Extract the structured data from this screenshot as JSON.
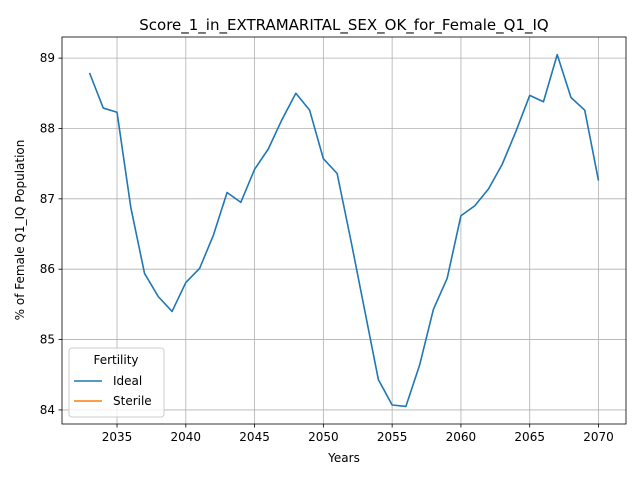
{
  "chart_data": {
    "type": "line",
    "title": "Score_1_in_EXTRAMARITAL_SEX_OK_for_Female_Q1_IQ",
    "xlabel": "Years",
    "ylabel": "% of Female Q1_IQ Population",
    "xlim": [
      2031,
      2072
    ],
    "ylim": [
      83.8,
      89.3
    ],
    "xticks": [
      "2035",
      "2040",
      "2045",
      "2050",
      "2055",
      "2060",
      "2065",
      "2070"
    ],
    "yticks": [
      "84",
      "85",
      "86",
      "87",
      "88",
      "89"
    ],
    "grid": true,
    "legend": {
      "title": "Fertility",
      "placement": "lower-left",
      "entries": [
        "Ideal",
        "Sterile"
      ]
    },
    "series": [
      {
        "name": "Ideal",
        "color": "#1f77b4",
        "x": [
          2033,
          2034,
          2035,
          2036,
          2037,
          2038,
          2039,
          2040,
          2041,
          2042,
          2043,
          2044,
          2045,
          2046,
          2047,
          2048,
          2049,
          2050,
          2051,
          2052,
          2053,
          2054,
          2055,
          2056,
          2057,
          2058,
          2059,
          2060,
          2061,
          2062,
          2063,
          2064,
          2065,
          2066,
          2067,
          2068,
          2069,
          2070
        ],
        "values": [
          88.79,
          88.29,
          88.23,
          86.88,
          85.94,
          85.61,
          85.4,
          85.81,
          86.01,
          86.48,
          87.09,
          86.95,
          87.42,
          87.71,
          88.13,
          88.5,
          88.26,
          87.57,
          87.36,
          86.41,
          85.42,
          84.43,
          84.07,
          84.05,
          84.64,
          85.43,
          85.87,
          86.76,
          86.9,
          87.14,
          87.49,
          87.96,
          88.47,
          88.38,
          89.05,
          88.44,
          88.26,
          87.26
        ]
      },
      {
        "name": "Sterile",
        "color": "#ff7f0e",
        "x": [],
        "values": []
      }
    ]
  }
}
